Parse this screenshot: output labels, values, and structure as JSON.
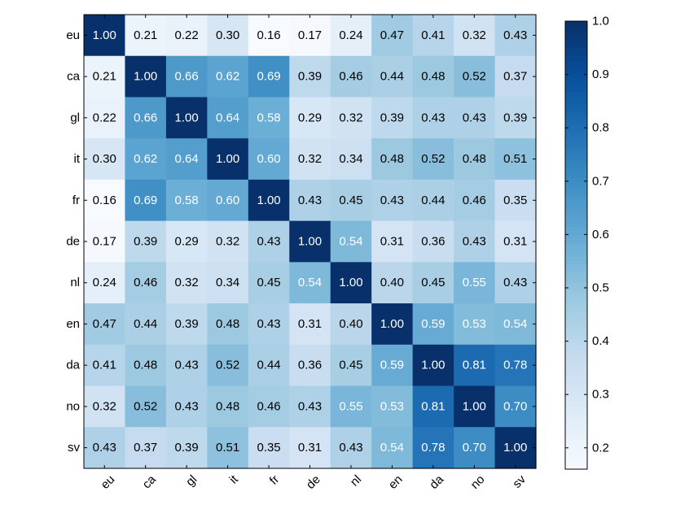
{
  "chart_data": {
    "type": "heatmap",
    "title": "",
    "xlabel": "",
    "ylabel": "",
    "row_labels": [
      "eu",
      "ca",
      "gl",
      "it",
      "fr",
      "de",
      "nl",
      "en",
      "da",
      "no",
      "sv"
    ],
    "col_labels": [
      "eu",
      "ca",
      "gl",
      "it",
      "fr",
      "de",
      "nl",
      "en",
      "da",
      "no",
      "sv"
    ],
    "values": [
      [
        1.0,
        0.21,
        0.22,
        0.3,
        0.16,
        0.17,
        0.24,
        0.47,
        0.41,
        0.32,
        0.43
      ],
      [
        0.21,
        1.0,
        0.66,
        0.62,
        0.69,
        0.39,
        0.46,
        0.44,
        0.48,
        0.52,
        0.37
      ],
      [
        0.22,
        0.66,
        1.0,
        0.64,
        0.58,
        0.29,
        0.32,
        0.39,
        0.43,
        0.43,
        0.39
      ],
      [
        0.3,
        0.62,
        0.64,
        1.0,
        0.6,
        0.32,
        0.34,
        0.48,
        0.52,
        0.48,
        0.51
      ],
      [
        0.16,
        0.69,
        0.58,
        0.6,
        1.0,
        0.43,
        0.45,
        0.43,
        0.44,
        0.46,
        0.35
      ],
      [
        0.17,
        0.39,
        0.29,
        0.32,
        0.43,
        1.0,
        0.54,
        0.31,
        0.36,
        0.43,
        0.31
      ],
      [
        0.24,
        0.46,
        0.32,
        0.34,
        0.45,
        0.54,
        1.0,
        0.4,
        0.45,
        0.55,
        0.43
      ],
      [
        0.47,
        0.44,
        0.39,
        0.48,
        0.43,
        0.31,
        0.4,
        1.0,
        0.59,
        0.53,
        0.54
      ],
      [
        0.41,
        0.48,
        0.43,
        0.52,
        0.44,
        0.36,
        0.45,
        0.59,
        1.0,
        0.81,
        0.78
      ],
      [
        0.32,
        0.52,
        0.43,
        0.48,
        0.46,
        0.43,
        0.55,
        0.53,
        0.81,
        1.0,
        0.7
      ],
      [
        0.43,
        0.37,
        0.39,
        0.51,
        0.35,
        0.31,
        0.43,
        0.54,
        0.78,
        0.7,
        1.0
      ]
    ],
    "value_format": "0.00",
    "colormap": "Blues",
    "vmin": 0.16,
    "vmax": 1.0,
    "colorbar": {
      "ticks": [
        0.2,
        0.3,
        0.4,
        0.5,
        0.6,
        0.7,
        0.8,
        0.9,
        1.0
      ],
      "tick_labels": [
        "0.2",
        "0.3",
        "0.4",
        "0.5",
        "0.6",
        "0.7",
        "0.8",
        "0.9",
        "1.0"
      ],
      "placement": "right"
    },
    "x_tick_rotation_deg": 45
  }
}
